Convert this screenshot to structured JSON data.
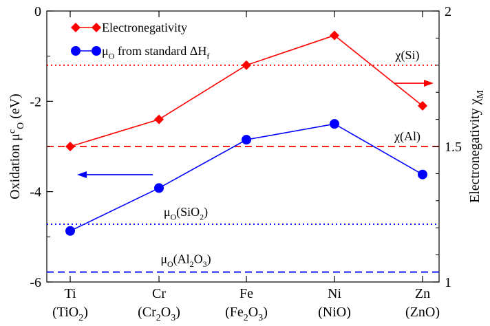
{
  "chart_data": {
    "type": "line",
    "x": {
      "categories": [
        {
          "element": "Ti",
          "oxide_parts": [
            [
              "(TiO",
              "normal"
            ],
            [
              "2",
              "sub"
            ],
            [
              ")",
              "normal"
            ]
          ]
        },
        {
          "element": "Cr",
          "oxide_parts": [
            [
              "(Cr",
              "normal"
            ],
            [
              "2",
              "sub"
            ],
            [
              "O",
              "normal"
            ],
            [
              "3",
              "sub"
            ],
            [
              ")",
              "normal"
            ]
          ]
        },
        {
          "element": "Fe",
          "oxide_parts": [
            [
              "(Fe",
              "normal"
            ],
            [
              "2",
              "sub"
            ],
            [
              "O",
              "normal"
            ],
            [
              "3",
              "sub"
            ],
            [
              ")",
              "normal"
            ]
          ]
        },
        {
          "element": "Ni",
          "oxide_parts": [
            [
              "(NiO)",
              "normal"
            ]
          ]
        },
        {
          "element": "Zn",
          "oxide_parts": [
            [
              "(ZnO)",
              "normal"
            ]
          ]
        }
      ]
    },
    "y_left": {
      "label_parts": [
        [
          "Oxidation  μ",
          "normal"
        ],
        [
          "c",
          "sup"
        ],
        [
          "O",
          "sub"
        ],
        [
          " (eV)",
          "normal"
        ]
      ],
      "ylim": [
        -6,
        0
      ],
      "ticks": [
        0,
        -2,
        -4,
        -6
      ],
      "tick_labels": [
        "0",
        "-2",
        "-4",
        "-6"
      ]
    },
    "y_right": {
      "label_parts": [
        [
          "Electronegativity  χ",
          "normal"
        ],
        [
          "M",
          "sub"
        ]
      ],
      "ylim": [
        1,
        2
      ],
      "ticks": [
        1,
        1.5,
        2
      ],
      "tick_labels": [
        "1",
        "1.5",
        "2"
      ]
    },
    "series": [
      {
        "axis": "right",
        "color": "#ff0000",
        "marker": "diamond",
        "legend_parts": [
          [
            "Electronegativity",
            "normal"
          ]
        ],
        "values": [
          1.5,
          1.6,
          1.8,
          1.91,
          1.65
        ]
      },
      {
        "axis": "left",
        "color": "#0000ff",
        "marker": "circle",
        "legend_parts": [
          [
            "μ",
            "normal"
          ],
          [
            "O",
            "sub"
          ],
          [
            " from standard ΔH",
            "normal"
          ],
          [
            "f",
            "sub"
          ]
        ],
        "values": [
          -4.87,
          -3.92,
          -2.85,
          -2.5,
          -3.62
        ]
      }
    ],
    "reference_lines": [
      {
        "axis": "right",
        "value": 1.8,
        "color": "#ff0000",
        "dash": "dotted",
        "label_parts": [
          [
            "χ(Si)",
            "normal"
          ]
        ]
      },
      {
        "axis": "right",
        "value": 1.5,
        "color": "#ff0000",
        "dash": "dashed",
        "label_parts": [
          [
            "χ(Al)",
            "normal"
          ]
        ]
      },
      {
        "axis": "left",
        "value": -4.72,
        "color": "#0000ff",
        "dash": "dotted",
        "label_parts": [
          [
            "μ",
            "normal"
          ],
          [
            "O",
            "sub"
          ],
          [
            "(SiO",
            "normal"
          ],
          [
            "2",
            "sub"
          ],
          [
            ")",
            "normal"
          ]
        ]
      },
      {
        "axis": "left",
        "value": -5.78,
        "color": "#0000ff",
        "dash": "dashed",
        "label_parts": [
          [
            "μ",
            "normal"
          ],
          [
            "O",
            "sub"
          ],
          [
            "(Al",
            "normal"
          ],
          [
            "2",
            "sub"
          ],
          [
            "O",
            "normal"
          ],
          [
            "3",
            "sub"
          ],
          [
            ")",
            "normal"
          ]
        ]
      }
    ],
    "arrows": [
      {
        "direction": "right",
        "color": "#ff0000",
        "meaning": "right-axis"
      },
      {
        "direction": "left",
        "color": "#0000ff",
        "meaning": "left-axis"
      }
    ],
    "legend_position": "top-left",
    "grid": false
  }
}
